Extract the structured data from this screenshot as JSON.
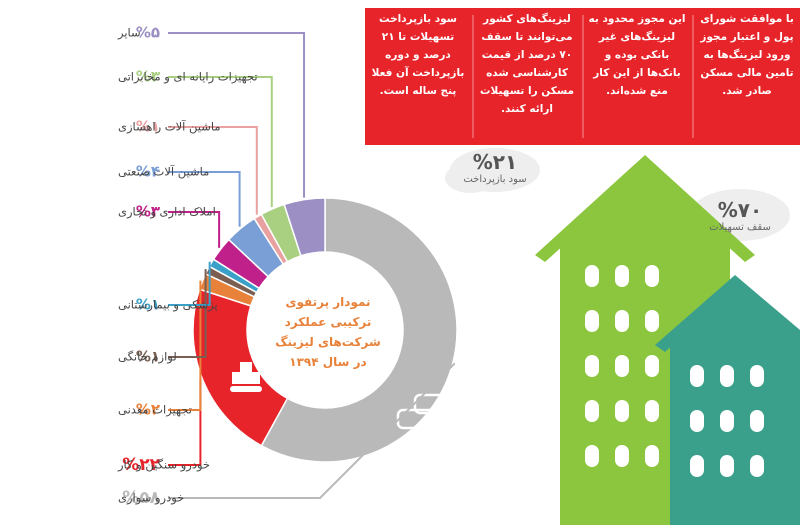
{
  "chart_data": {
    "type": "donut",
    "title": "نمودار پرتفوی ترکیبی عملکرد شرکت‌های لیزینگ در سال ۱۳۹۴",
    "categories": [
      "خودرو سواری",
      "خودرو سنگین و کار",
      "تجهیزات معدنی",
      "لوازم خانگی",
      "پزشکی و بیمارستانی",
      "املاک اداری و تجاری",
      "ماشین آلات صنعتی",
      "ماشین آلات راهسازی",
      "تجهیزات رایانه ای و مخابراتی",
      "سایر"
    ],
    "values": [
      58,
      22,
      2,
      1,
      1,
      3,
      4,
      1,
      3,
      5
    ],
    "value_labels": [
      "%۵۸",
      "%۲۲",
      "%۲",
      "%۱",
      "%۱",
      "%۳",
      "%۴",
      "%۱",
      "%۳",
      "%۵"
    ],
    "colors": [
      "#b9b9b9",
      "#e8242b",
      "#e8823a",
      "#7b5e52",
      "#3aa0c8",
      "#c0208a",
      "#7a9fd6",
      "#e8a0a0",
      "#a8d080",
      "#9b8fc4"
    ]
  },
  "notes": [
    "با موافقت شورای پول و اعتبار مجوز ورود لیزینگ‌ها به تامین مالی مسکن صادر شد.",
    "این مجوز محدود به لیزینگ‌های غیر بانکی بوده و بانک‌ها از این کار منع شده‌اند.",
    "لیزینگ‌های کشور می‌توانند تا سقف ۷۰ درصد از قیمت کارشناسی شده مسکن را تسهیلات ارائه کنند.",
    "سود بازپرداخت تسهیلات تا ۲۱ درصد و دوره بازپرداخت آن فعلا پنج ساله است."
  ],
  "stats": [
    {
      "value": "%۲۱",
      "label": "سود بازپرداخت"
    },
    {
      "value": "%۷۰",
      "label": "سقف تسهیلات"
    }
  ]
}
